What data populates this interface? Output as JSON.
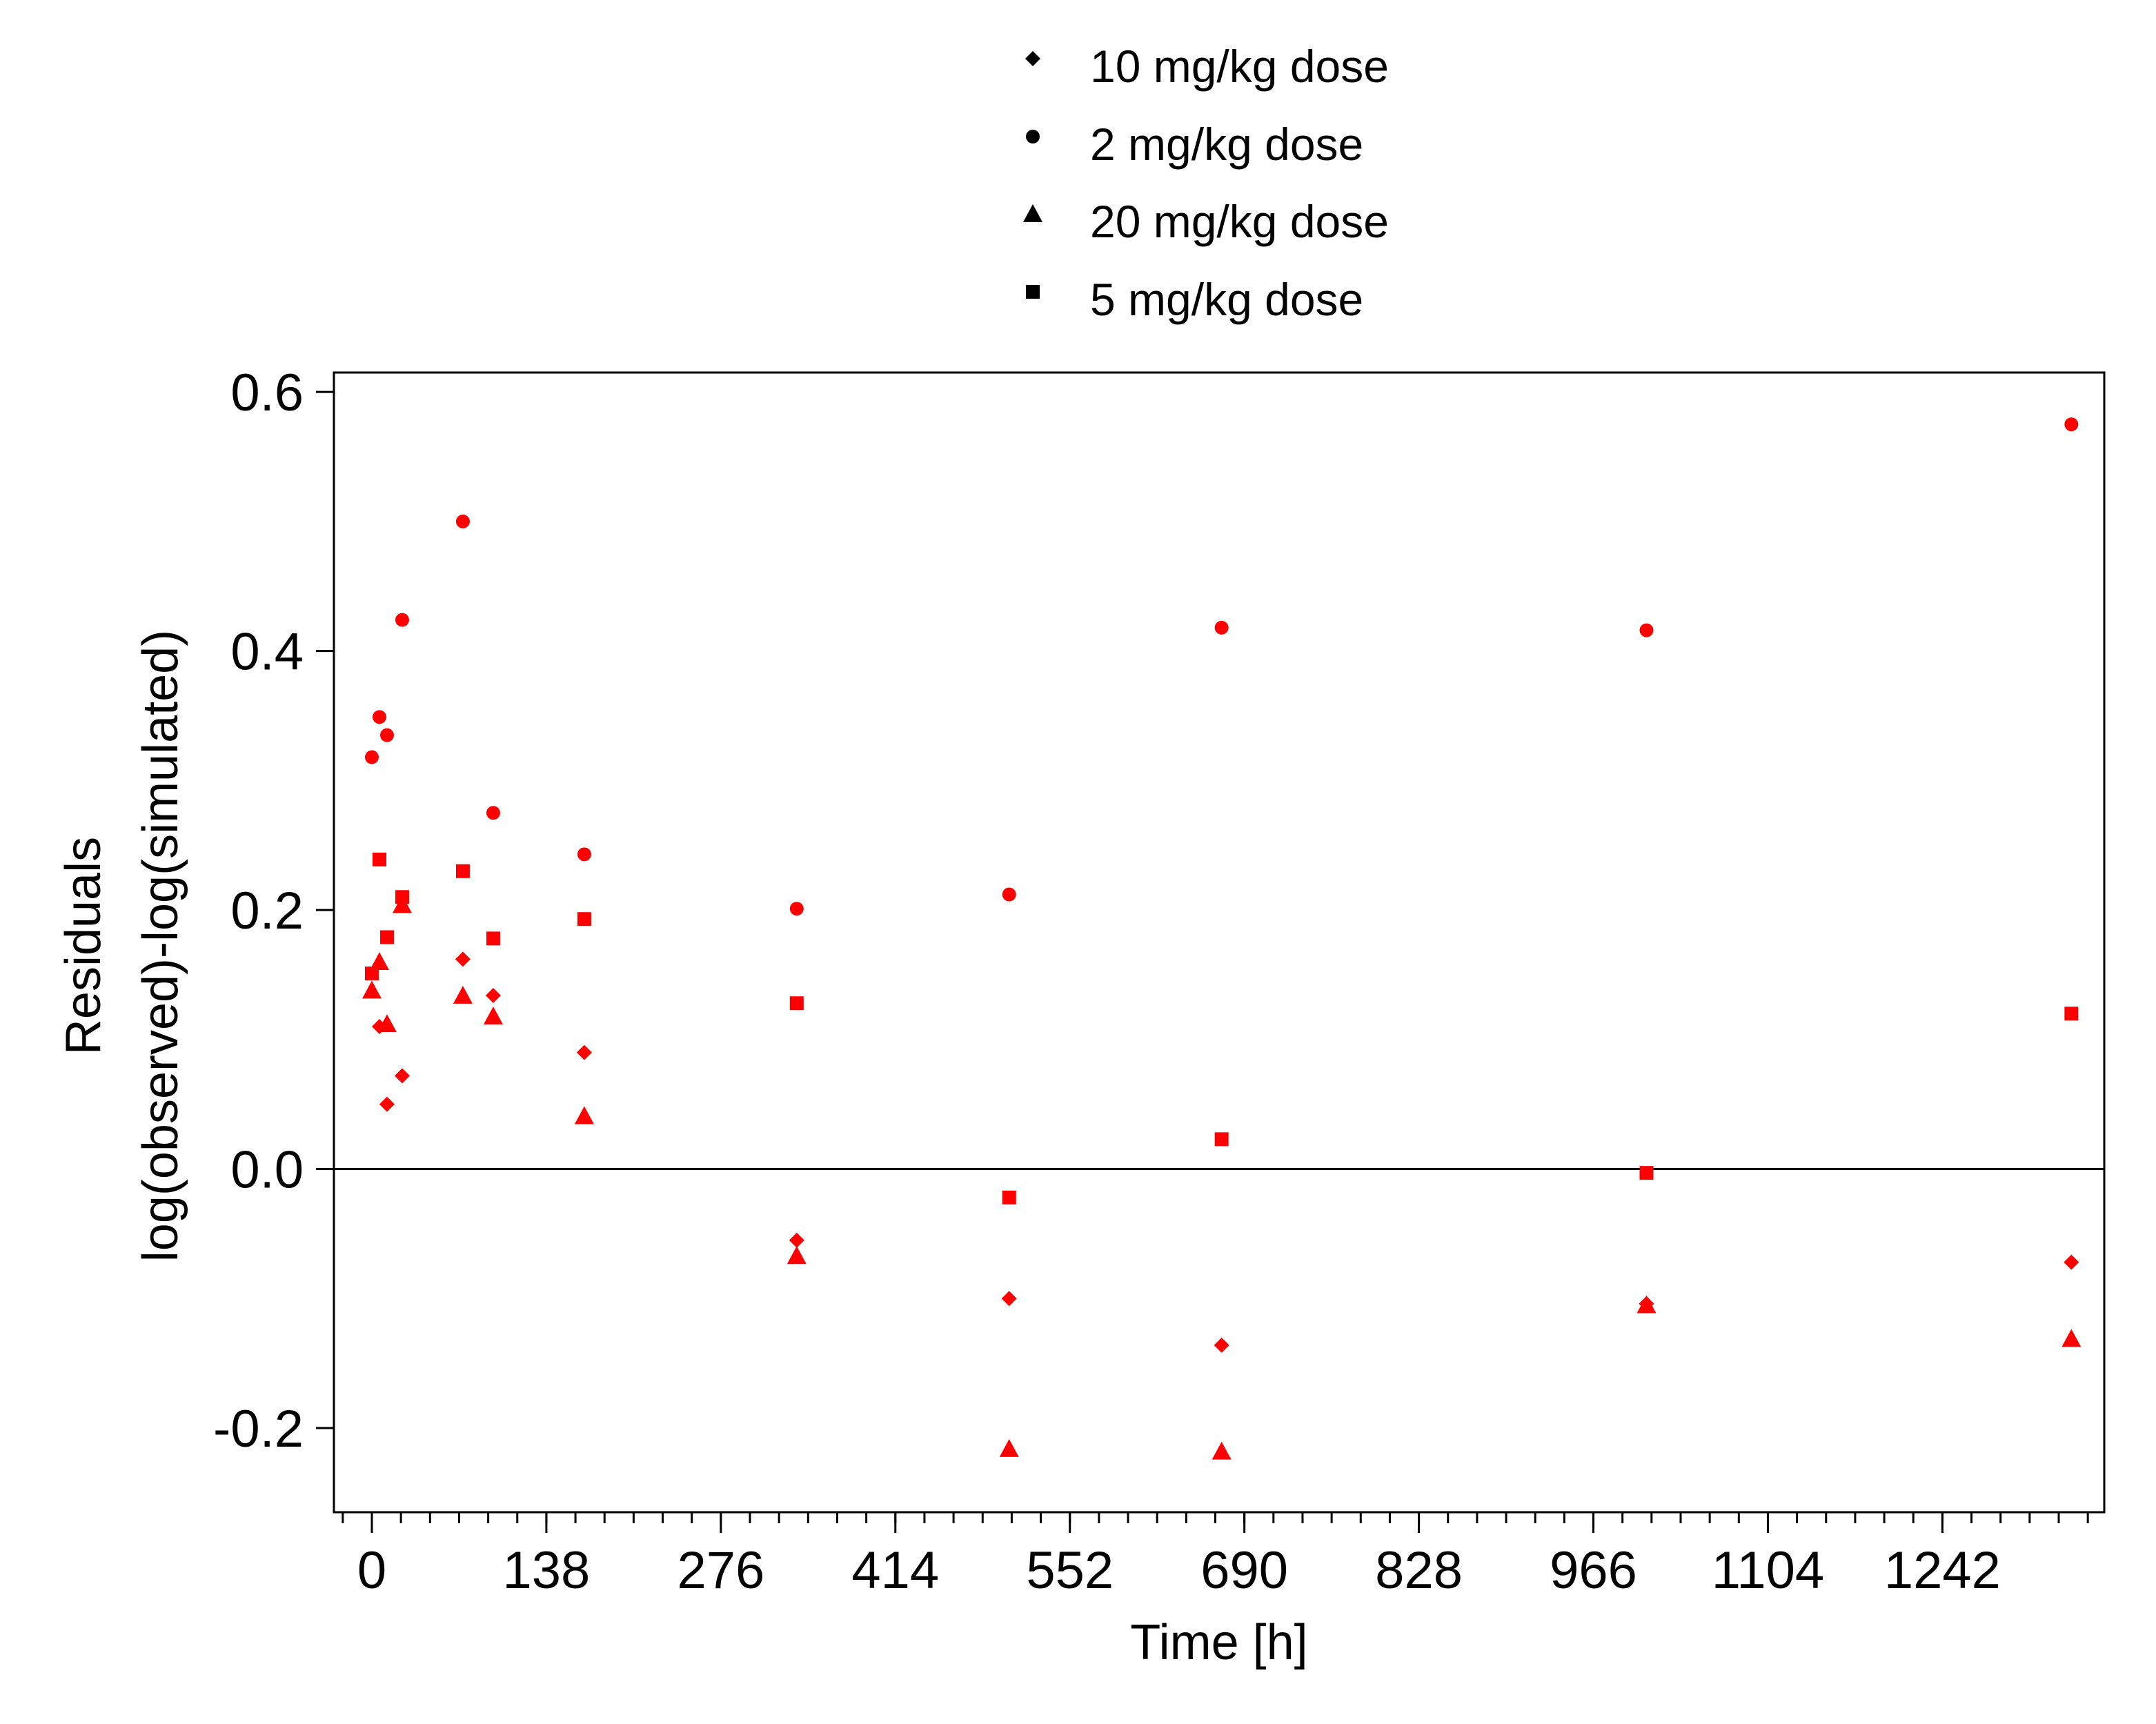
{
  "chart_data": {
    "type": "scatter",
    "xlabel": "Time [h]",
    "ylabel_lines": [
      "Residuals",
      "log(observed)-log(simulated)"
    ],
    "xlim": [
      -30,
      1370
    ],
    "ylim": [
      -0.265,
      0.615
    ],
    "xticks": [
      0,
      138,
      276,
      414,
      552,
      690,
      828,
      966,
      1104,
      1242
    ],
    "xtick_labels": [
      "0",
      "138",
      "276",
      "414",
      "552",
      "690",
      "828",
      "966",
      "1104",
      "1242"
    ],
    "x_minor_step": 23,
    "yticks": [
      -0.2,
      0.0,
      0.2,
      0.4,
      0.6
    ],
    "ytick_labels": [
      "-0.2",
      "0.0",
      "0.2",
      "0.4",
      "0.6"
    ],
    "reference_line_y": 0,
    "grid": false,
    "legend_position": "top",
    "point_color": "#ff0000",
    "series": [
      {
        "name": "10 mg/kg dose",
        "marker": "diamond",
        "points": [
          [
            6,
            0.11
          ],
          [
            12,
            0.05
          ],
          [
            24,
            0.072
          ],
          [
            72,
            0.162
          ],
          [
            96,
            0.134
          ],
          [
            168,
            0.09
          ],
          [
            336,
            -0.055
          ],
          [
            504,
            -0.1
          ],
          [
            672,
            -0.136
          ],
          [
            1008,
            -0.104
          ],
          [
            1344,
            -0.072
          ]
        ]
      },
      {
        "name": "2 mg/kg dose",
        "marker": "circle",
        "points": [
          [
            0,
            0.318
          ],
          [
            6,
            0.349
          ],
          [
            12,
            0.335
          ],
          [
            24,
            0.424
          ],
          [
            72,
            0.5
          ],
          [
            96,
            0.275
          ],
          [
            168,
            0.243
          ],
          [
            336,
            0.201
          ],
          [
            504,
            0.212
          ],
          [
            672,
            0.418
          ],
          [
            1008,
            0.416
          ],
          [
            1344,
            0.575
          ]
        ]
      },
      {
        "name": "20 mg/kg dose",
        "marker": "triangle",
        "points": [
          [
            0,
            0.138
          ],
          [
            6,
            0.16
          ],
          [
            12,
            0.112
          ],
          [
            24,
            0.204
          ],
          [
            72,
            0.134
          ],
          [
            96,
            0.118
          ],
          [
            168,
            0.041
          ],
          [
            336,
            -0.067
          ],
          [
            504,
            -0.216
          ],
          [
            672,
            -0.218
          ],
          [
            1008,
            -0.105
          ],
          [
            1344,
            -0.131
          ]
        ]
      },
      {
        "name": "5 mg/kg dose",
        "marker": "square",
        "points": [
          [
            0,
            0.151
          ],
          [
            6,
            0.239
          ],
          [
            12,
            0.179
          ],
          [
            24,
            0.21
          ],
          [
            72,
            0.23
          ],
          [
            96,
            0.178
          ],
          [
            168,
            0.193
          ],
          [
            336,
            0.128
          ],
          [
            504,
            -0.022
          ],
          [
            672,
            0.023
          ],
          [
            1008,
            -0.003
          ],
          [
            1344,
            0.12
          ]
        ]
      }
    ]
  }
}
